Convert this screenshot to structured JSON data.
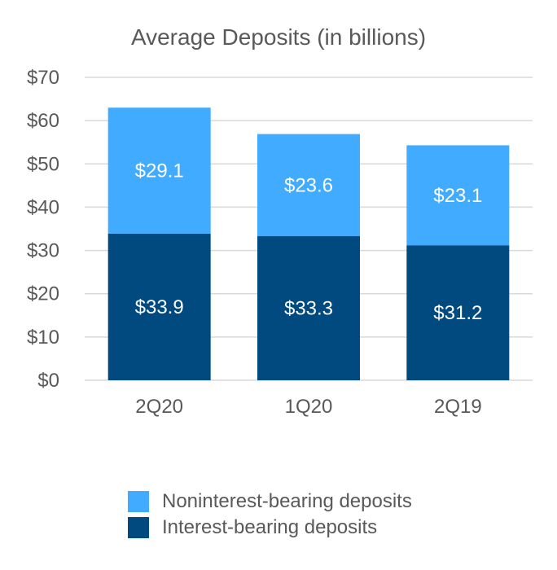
{
  "chart_data": {
    "type": "bar",
    "stacked": true,
    "title": "Average Deposits (in billions)",
    "categories": [
      "2Q20",
      "1Q20",
      "2Q19"
    ],
    "series": [
      {
        "name": "Interest-bearing deposits",
        "values": [
          33.9,
          33.3,
          31.2
        ],
        "labels": [
          "$33.9",
          "$33.3",
          "$31.2"
        ],
        "color": "#004a7f"
      },
      {
        "name": "Noninterest-bearing deposits",
        "values": [
          29.1,
          23.6,
          23.1
        ],
        "labels": [
          "$29.1",
          "$23.6",
          "$23.1"
        ],
        "color": "#41abff"
      }
    ],
    "ylim": [
      0,
      70
    ],
    "yticks": [
      0,
      10,
      20,
      30,
      40,
      50,
      60,
      70
    ],
    "ytick_labels": [
      "$0",
      "$10",
      "$20",
      "$30",
      "$40",
      "$50",
      "$60",
      "$70"
    ],
    "grid": true,
    "legend_position": "bottom"
  },
  "legend": [
    {
      "label": "Noninterest-bearing deposits",
      "color": "#41abff"
    },
    {
      "label": "Interest-bearing deposits",
      "color": "#004a7f"
    }
  ]
}
